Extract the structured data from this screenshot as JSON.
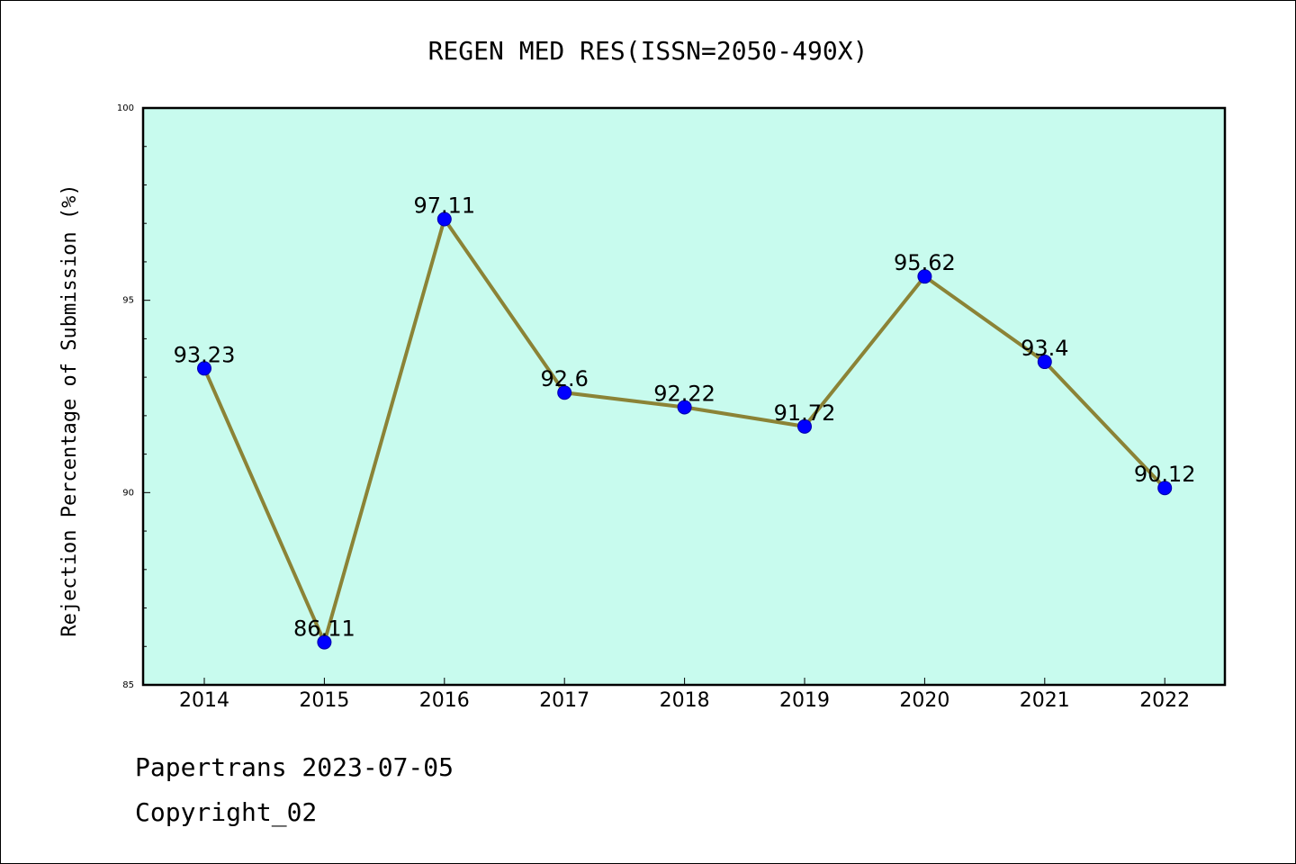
{
  "chart_data": {
    "type": "line",
    "title": "REGEN MED RES(ISSN=2050-490X)",
    "xlabel": "",
    "ylabel": "Rejection Percentage of Submission (%)",
    "categories": [
      "2014",
      "2015",
      "2016",
      "2017",
      "2018",
      "2019",
      "2020",
      "2021",
      "2022"
    ],
    "values": [
      93.23,
      86.11,
      97.11,
      92.6,
      92.22,
      91.72,
      95.62,
      93.4,
      90.12
    ],
    "data_labels": [
      "93.23",
      "86.11",
      "97.11",
      "92.6",
      "92.22",
      "91.72",
      "95.62",
      "93.4",
      "90.12"
    ],
    "ylim": [
      85,
      100
    ],
    "yticks": [
      "85",
      "90",
      "95",
      "100"
    ],
    "grid": false,
    "legend": "none",
    "colors": {
      "plot_background": "#c8fbee",
      "line": "#8b8336",
      "marker": "#0000ff"
    }
  },
  "footer": {
    "line1": "Papertrans 2023-07-05",
    "line2": "Copyright_02"
  }
}
